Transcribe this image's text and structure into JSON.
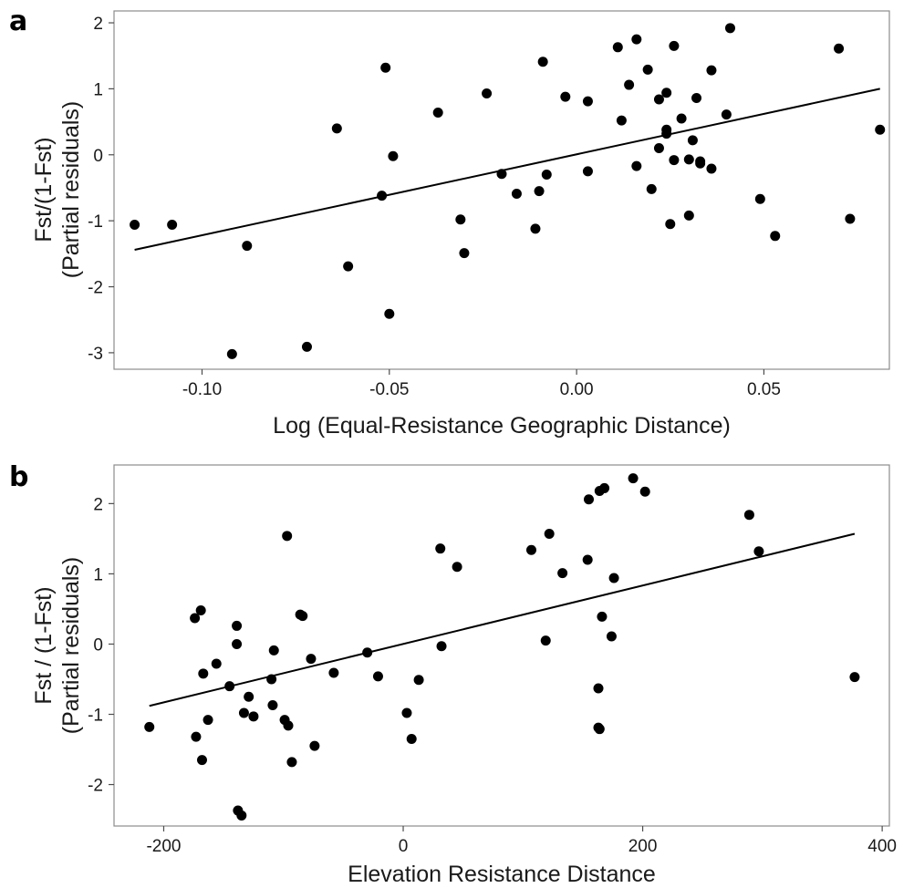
{
  "chart_data": [
    {
      "type": "scatter",
      "panel_label": "a",
      "xlabel": "Log (Equal-Resistance Geographic Distance)",
      "ylabel_lines": [
        "Fst/(1-Fst)",
        "(Partial residuals)"
      ],
      "xlim": [
        -0.1235,
        0.0835
      ],
      "ylim": [
        -3.25,
        2.18
      ],
      "xticks": [
        -0.1,
        -0.05,
        0.0,
        0.05
      ],
      "xtick_labels": [
        "-0.10",
        "-0.05",
        "0.00",
        "0.05"
      ],
      "yticks": [
        -3,
        -2,
        -1,
        0,
        1,
        2
      ],
      "ytick_labels": [
        "-3",
        "-2",
        "-1",
        "0",
        "1",
        "2"
      ],
      "grid": false,
      "fit_line": {
        "x": [
          -0.118,
          0.081
        ],
        "y": [
          -1.44,
          1.0
        ]
      },
      "points": [
        {
          "x": -0.118,
          "y": -1.06
        },
        {
          "x": -0.108,
          "y": -1.06
        },
        {
          "x": -0.088,
          "y": -1.38
        },
        {
          "x": -0.092,
          "y": -3.02
        },
        {
          "x": -0.072,
          "y": -2.91
        },
        {
          "x": -0.064,
          "y": 0.4
        },
        {
          "x": -0.061,
          "y": -1.69
        },
        {
          "x": -0.052,
          "y": -0.62
        },
        {
          "x": -0.051,
          "y": 1.32
        },
        {
          "x": -0.05,
          "y": -2.41
        },
        {
          "x": -0.049,
          "y": -0.02
        },
        {
          "x": -0.037,
          "y": 0.64
        },
        {
          "x": -0.031,
          "y": -0.98
        },
        {
          "x": -0.03,
          "y": -1.49
        },
        {
          "x": -0.024,
          "y": 0.93
        },
        {
          "x": -0.02,
          "y": -0.29
        },
        {
          "x": -0.016,
          "y": -0.59
        },
        {
          "x": -0.011,
          "y": -1.12
        },
        {
          "x": -0.01,
          "y": -0.55
        },
        {
          "x": -0.009,
          "y": 1.41
        },
        {
          "x": -0.008,
          "y": -0.3
        },
        {
          "x": -0.003,
          "y": 0.88
        },
        {
          "x": 0.003,
          "y": 0.81
        },
        {
          "x": 0.003,
          "y": -0.25
        },
        {
          "x": 0.011,
          "y": 1.63
        },
        {
          "x": 0.012,
          "y": 0.52
        },
        {
          "x": 0.014,
          "y": 1.06
        },
        {
          "x": 0.016,
          "y": 1.75
        },
        {
          "x": 0.016,
          "y": -0.17
        },
        {
          "x": 0.019,
          "y": 1.29
        },
        {
          "x": 0.02,
          "y": -0.52
        },
        {
          "x": 0.022,
          "y": 0.84
        },
        {
          "x": 0.022,
          "y": 0.1
        },
        {
          "x": 0.024,
          "y": 0.94
        },
        {
          "x": 0.024,
          "y": 0.38
        },
        {
          "x": 0.024,
          "y": 0.32
        },
        {
          "x": 0.025,
          "y": -1.05
        },
        {
          "x": 0.026,
          "y": 1.65
        },
        {
          "x": 0.026,
          "y": -0.08
        },
        {
          "x": 0.028,
          "y": 0.55
        },
        {
          "x": 0.03,
          "y": -0.07
        },
        {
          "x": 0.03,
          "y": -0.92
        },
        {
          "x": 0.031,
          "y": 0.22
        },
        {
          "x": 0.032,
          "y": 0.86
        },
        {
          "x": 0.033,
          "y": -0.1
        },
        {
          "x": 0.033,
          "y": -0.13
        },
        {
          "x": 0.036,
          "y": 1.28
        },
        {
          "x": 0.036,
          "y": -0.21
        },
        {
          "x": 0.04,
          "y": 0.61
        },
        {
          "x": 0.041,
          "y": 1.92
        },
        {
          "x": 0.049,
          "y": -0.67
        },
        {
          "x": 0.053,
          "y": -1.23
        },
        {
          "x": 0.07,
          "y": 1.61
        },
        {
          "x": 0.073,
          "y": -0.97
        },
        {
          "x": 0.081,
          "y": 0.38
        }
      ]
    },
    {
      "type": "scatter",
      "panel_label": "b",
      "xlabel": "Elevation Resistance Distance",
      "ylabel_lines": [
        "Fst / (1-Fst)",
        "(Partial residuals)"
      ],
      "xlim": [
        -241.5,
        406
      ],
      "ylim": [
        -2.59,
        2.55
      ],
      "xticks": [
        -200,
        0,
        200,
        400
      ],
      "xtick_labels": [
        "-200",
        "0",
        "200",
        "400"
      ],
      "yticks": [
        -2,
        -1,
        0,
        1,
        2
      ],
      "ytick_labels": [
        "-2",
        "-1",
        "0",
        "1",
        "2"
      ],
      "grid": false,
      "fit_line": {
        "x": [
          -212,
          377
        ],
        "y": [
          -0.88,
          1.57
        ]
      },
      "points": [
        {
          "x": -212,
          "y": -1.18
        },
        {
          "x": -174,
          "y": 0.37
        },
        {
          "x": -173,
          "y": -1.32
        },
        {
          "x": -169,
          "y": 0.48
        },
        {
          "x": -168,
          "y": -1.65
        },
        {
          "x": -167,
          "y": -0.42
        },
        {
          "x": -163,
          "y": -1.08
        },
        {
          "x": -156,
          "y": -0.28
        },
        {
          "x": -145,
          "y": -0.6
        },
        {
          "x": -139,
          "y": 0.26
        },
        {
          "x": -139,
          "y": 0.0
        },
        {
          "x": -138,
          "y": -2.37
        },
        {
          "x": -135,
          "y": -2.44
        },
        {
          "x": -133,
          "y": -0.98
        },
        {
          "x": -129,
          "y": -0.75
        },
        {
          "x": -125,
          "y": -1.03
        },
        {
          "x": -110,
          "y": -0.5
        },
        {
          "x": -109,
          "y": -0.87
        },
        {
          "x": -108,
          "y": -0.09
        },
        {
          "x": -99,
          "y": -1.08
        },
        {
          "x": -97,
          "y": 1.54
        },
        {
          "x": -96,
          "y": -1.16
        },
        {
          "x": -93,
          "y": -1.68
        },
        {
          "x": -86,
          "y": 0.42
        },
        {
          "x": -84,
          "y": 0.4
        },
        {
          "x": -77,
          "y": -0.21
        },
        {
          "x": -74,
          "y": -1.45
        },
        {
          "x": -58,
          "y": -0.41
        },
        {
          "x": -30,
          "y": -0.12
        },
        {
          "x": -21,
          "y": -0.46
        },
        {
          "x": 3,
          "y": -0.98
        },
        {
          "x": 7,
          "y": -1.35
        },
        {
          "x": 13,
          "y": -0.51
        },
        {
          "x": 31,
          "y": 1.36
        },
        {
          "x": 32,
          "y": -0.03
        },
        {
          "x": 45,
          "y": 1.1
        },
        {
          "x": 107,
          "y": 1.34
        },
        {
          "x": 119,
          "y": 0.05
        },
        {
          "x": 122,
          "y": 1.57
        },
        {
          "x": 133,
          "y": 1.01
        },
        {
          "x": 154,
          "y": 1.2
        },
        {
          "x": 155,
          "y": 2.06
        },
        {
          "x": 163,
          "y": -0.63
        },
        {
          "x": 163,
          "y": -1.19
        },
        {
          "x": 164,
          "y": -1.21
        },
        {
          "x": 164,
          "y": 2.18
        },
        {
          "x": 166,
          "y": 0.39
        },
        {
          "x": 168,
          "y": 2.22
        },
        {
          "x": 174,
          "y": 0.11
        },
        {
          "x": 176,
          "y": 0.94
        },
        {
          "x": 192,
          "y": 2.36
        },
        {
          "x": 202,
          "y": 2.17
        },
        {
          "x": 289,
          "y": 1.84
        },
        {
          "x": 297,
          "y": 1.32
        },
        {
          "x": 377,
          "y": -0.47
        }
      ]
    }
  ]
}
